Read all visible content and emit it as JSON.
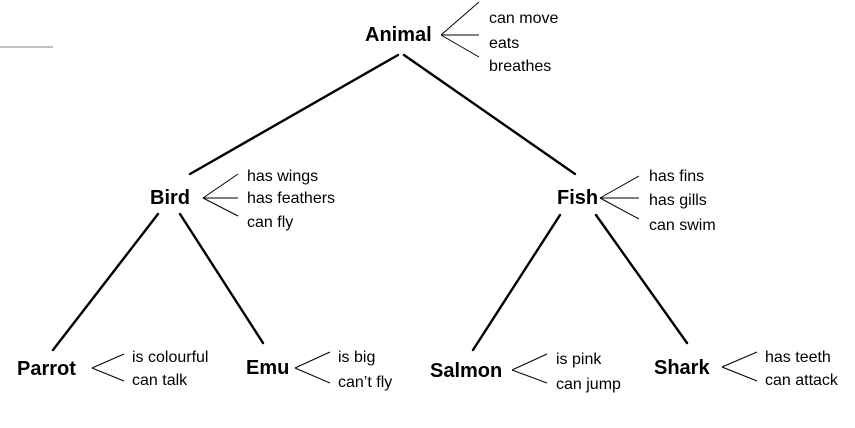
{
  "nodes": {
    "animal": {
      "label": "Animal",
      "properties": [
        "can move",
        "eats",
        "breathes"
      ]
    },
    "bird": {
      "label": "Bird",
      "properties": [
        "has wings",
        "has feathers",
        "can fly"
      ]
    },
    "fish": {
      "label": "Fish",
      "properties": [
        "has fins",
        "has gills",
        "can swim"
      ]
    },
    "parrot": {
      "label": "Parrot",
      "properties": [
        "is colourful",
        "can talk"
      ]
    },
    "emu": {
      "label": "Emu",
      "properties": [
        "is big",
        "can’t fly"
      ]
    },
    "salmon": {
      "label": "Salmon",
      "properties": [
        "is pink",
        "can jump"
      ]
    },
    "shark": {
      "label": "Shark",
      "properties": [
        "has teeth",
        "can attack"
      ]
    }
  },
  "edges": [
    [
      "animal",
      "bird"
    ],
    [
      "animal",
      "fish"
    ],
    [
      "bird",
      "parrot"
    ],
    [
      "bird",
      "emu"
    ],
    [
      "fish",
      "salmon"
    ],
    [
      "fish",
      "shark"
    ]
  ]
}
